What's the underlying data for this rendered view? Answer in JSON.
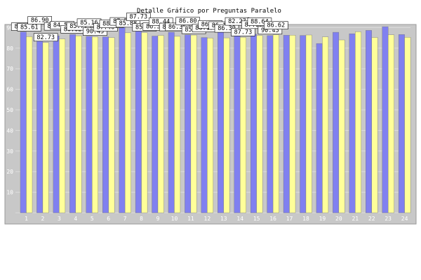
{
  "chart_data": {
    "type": "bar",
    "title": "Detalle Gráfico por Preguntas Paralelo",
    "xlabel": "",
    "ylabel": "",
    "ylim": [
      0,
      95
    ],
    "yticks": [
      10,
      20,
      30,
      40,
      50,
      60,
      70,
      80,
      90
    ],
    "grid": true,
    "categories": [
      "1",
      "2",
      "3",
      "4",
      "5",
      "6",
      "7",
      "8",
      "9",
      "10",
      "11",
      "12",
      "13",
      "14",
      "15",
      "16",
      "17",
      "18",
      "19",
      "20",
      "21",
      "22",
      "23",
      "24"
    ],
    "series": [
      {
        "name": "",
        "color": "#8080f0",
        "values": [
          87.9,
          86.9,
          86.0,
          86.62,
          85.77,
          85.5,
          90.45,
          88.55,
          85.88,
          87.73,
          86.5,
          85.17,
          88.44,
          86.35,
          86.8,
          86.13,
          86.27,
          86.18,
          82.27,
          87.73,
          87.0,
          88.64,
          90.45,
          86.62
        ]
      },
      {
        "name": "",
        "color": "#ffff99",
        "values": [
          85.61,
          82.73,
          84.5,
          86.0,
          85.5,
          85.16,
          87.46,
          87.57,
          86.2,
          85.75,
          86.36,
          84.9,
          85.0,
          85.25,
          86.2,
          86.5,
          86.3,
          86.39,
          85.5,
          84.0,
          87.97,
          85.2,
          86.5,
          85.3
        ]
      }
    ],
    "data_labels": [
      "87.90",
      "85.61",
      "86.90",
      "82.73",
      "86.00",
      "84.50",
      "86.62",
      "85.77",
      "85.16",
      "90.45",
      "87.46",
      "88.55",
      "87.57",
      "85.88",
      "87.73",
      "85.75",
      "86.36",
      "88.44",
      "85.17",
      "86.35",
      "86.80",
      "85.25",
      "86.13",
      "86.27",
      "86.18",
      "86.39",
      "82.27",
      "87.73",
      "87.97",
      "88.64",
      "90.45",
      "86.62"
    ],
    "colors": {
      "plot_bg": "#c8c8c8",
      "grid": "#dcdcdc",
      "tick_label": "#ffffff",
      "axis_line": "#999999"
    }
  }
}
